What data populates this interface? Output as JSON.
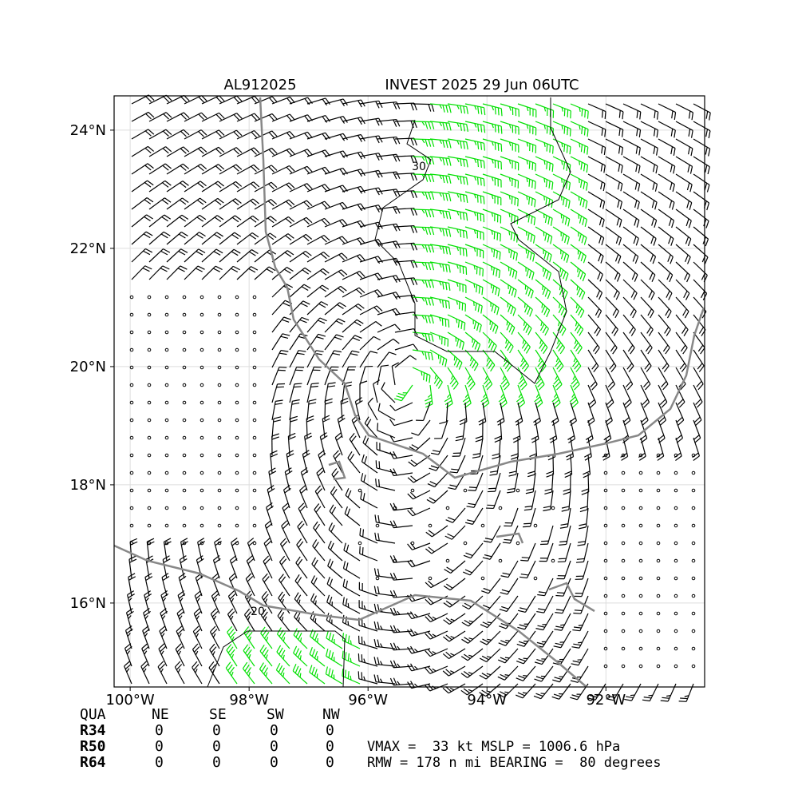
{
  "header": {
    "left": "AL912025",
    "right": "INVEST 2025 29 Jun 06UTC"
  },
  "map": {
    "lon_ticks": [
      {
        "value": -100,
        "label": "100°W"
      },
      {
        "value": -98,
        "label": "98°W"
      },
      {
        "value": -96,
        "label": "96°W"
      },
      {
        "value": -94,
        "label": "94°W"
      },
      {
        "value": -92,
        "label": "92°W"
      }
    ],
    "lat_ticks": [
      {
        "value": 24,
        "label": "24°N"
      },
      {
        "value": 22,
        "label": "22°N"
      },
      {
        "value": 20,
        "label": "20°N"
      },
      {
        "value": 18,
        "label": "18°N"
      },
      {
        "value": 16,
        "label": "16°N"
      }
    ],
    "contour_labels": [
      "30",
      "20"
    ]
  },
  "table": {
    "header": [
      "QUA",
      "NE",
      "SE",
      "SW",
      "NW"
    ],
    "rows": [
      [
        "R34",
        0,
        0,
        0,
        0
      ],
      [
        "R50",
        0,
        0,
        0,
        0
      ],
      [
        "R64",
        0,
        0,
        0,
        0
      ]
    ]
  },
  "info": [
    "VMAX =  33 kt MSLP = 1006.6 hPa",
    "RMW = 178 n mi BEARING =  80 degrees"
  ]
}
